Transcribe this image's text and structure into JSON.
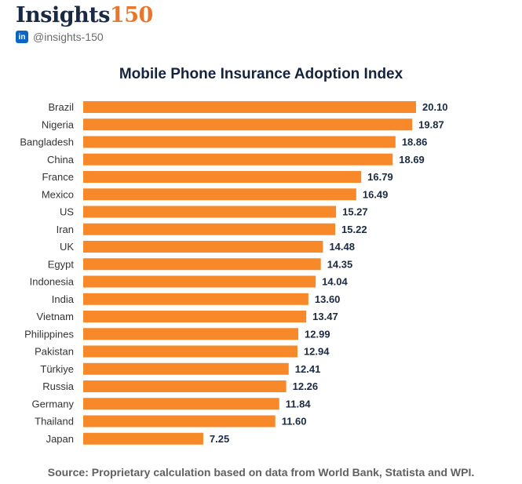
{
  "brand": {
    "name_prefix": "Insights",
    "name_suffix": "150",
    "linkedin_icon": "linkedin-icon",
    "linkedin_glyph": "in",
    "handle": "@insights-150"
  },
  "source": "Source: Proprietary calculation based on data from World Bank, Statista and WPI.",
  "colors": {
    "bar": "#f7892a",
    "label": "#333333",
    "value": "#1b2a44"
  },
  "chart_data": {
    "type": "bar",
    "orientation": "horizontal",
    "title": "Mobile Phone Insurance Adoption Index",
    "xlabel": "",
    "ylabel": "",
    "xlim": [
      0,
      20.1
    ],
    "grid": false,
    "legend": "none",
    "categories": [
      "Brazil",
      "Nigeria",
      "Bangladesh",
      "China",
      "France",
      "Mexico",
      "US",
      "Iran",
      "UK",
      "Egypt",
      "Indonesia",
      "India",
      "Vietnam",
      "Philippines",
      "Pakistan",
      "Türkiye",
      "Russia",
      "Germany",
      "Thailand",
      "Japan"
    ],
    "values": [
      20.1,
      19.87,
      18.86,
      18.69,
      16.79,
      16.49,
      15.27,
      15.22,
      14.48,
      14.35,
      14.04,
      13.6,
      13.47,
      12.99,
      12.94,
      12.41,
      12.26,
      11.84,
      11.6,
      7.25
    ],
    "value_labels": [
      "20.10",
      "19.87",
      "18.86",
      "18.69",
      "16.79",
      "16.49",
      "15.27",
      "15.22",
      "14.48",
      "14.35",
      "14.04",
      "13.60",
      "13.47",
      "12.99",
      "12.94",
      "12.41",
      "12.26",
      "11.84",
      "11.60",
      "7.25"
    ]
  }
}
